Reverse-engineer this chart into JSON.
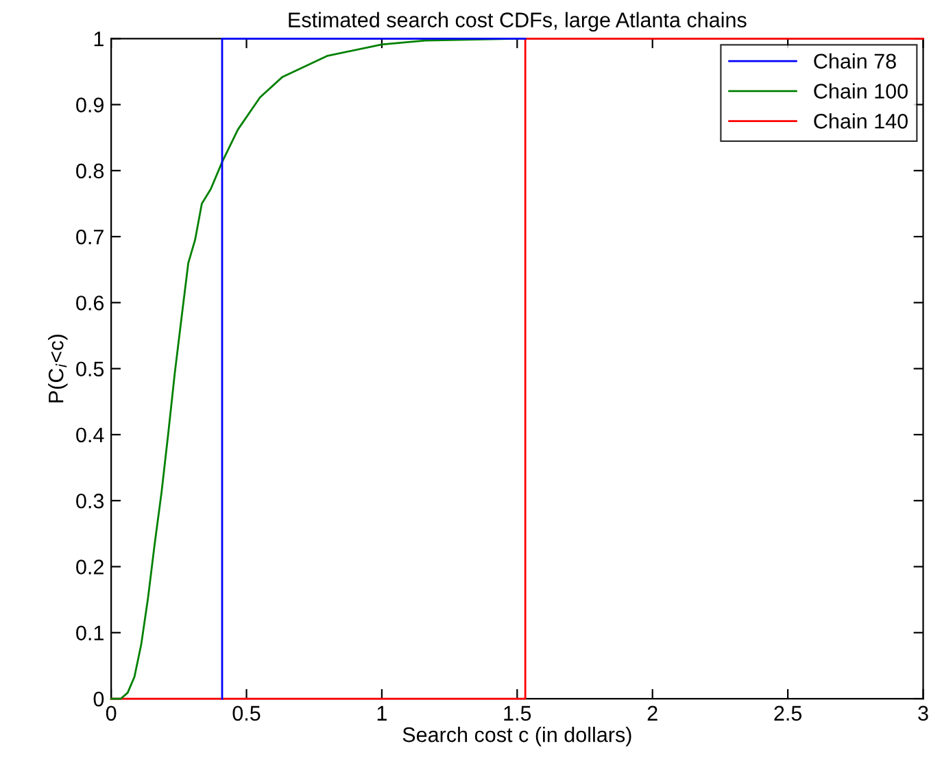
{
  "chart_data": {
    "type": "line",
    "title": "Estimated search cost CDFs, large Atlanta chains",
    "xlabel": "Search cost c (in dollars)",
    "ylabel": "P(C$_{i}$<c)",
    "series": [
      {
        "name": "Chain 78",
        "type": "line",
        "color": "#0000ff",
        "x": [
          0.41,
          0.41,
          1.53
        ],
        "values": [
          0,
          1,
          1
        ]
      },
      {
        "name": "Chain 100",
        "type": "line",
        "color": "#008000",
        "x": [
          0,
          0.036,
          0.061,
          0.086,
          0.111,
          0.136,
          0.161,
          0.186,
          0.211,
          0.235,
          0.26,
          0.285,
          0.31,
          0.335,
          0.368,
          0.41,
          0.468,
          0.55,
          0.633,
          0.8,
          1.0,
          1.16,
          1.5
        ],
        "values": [
          0,
          0,
          0.009,
          0.033,
          0.082,
          0.152,
          0.235,
          0.312,
          0.402,
          0.493,
          0.577,
          0.66,
          0.695,
          0.75,
          0.772,
          0.813,
          0.862,
          0.911,
          0.942,
          0.974,
          0.991,
          0.997,
          1
        ]
      },
      {
        "name": "Chain 140",
        "type": "step",
        "color": "#ff0000",
        "x": [
          0,
          1.53,
          3
        ],
        "values": [
          0,
          1,
          1
        ]
      }
    ],
    "xlim": [
      0,
      3
    ],
    "ylim": [
      0,
      1
    ],
    "xticks": [
      0,
      0.5,
      1,
      1.5,
      2,
      2.5,
      3
    ],
    "yticks": [
      0,
      0.1,
      0.2,
      0.3,
      0.4,
      0.5,
      0.6,
      0.7,
      0.8,
      0.9,
      1
    ],
    "grid": false,
    "legend": "top right"
  }
}
